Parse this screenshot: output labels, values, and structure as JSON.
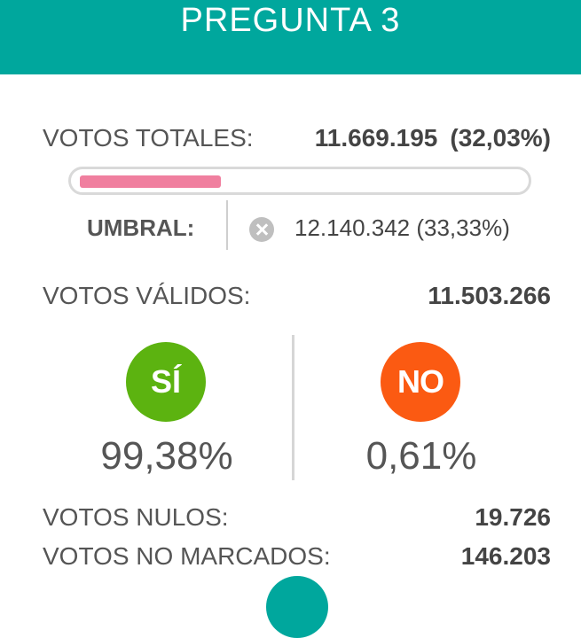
{
  "header": {
    "title": "PREGUNTA 3"
  },
  "totales": {
    "label": "VOTOS TOTALES:",
    "value": "11.669.195",
    "percent": "(32,03%)",
    "progress_fraction": 0.3203
  },
  "umbral": {
    "label": "UMBRAL:",
    "value": "12.140.342 (33,33%)",
    "status_icon": "close-circle-icon"
  },
  "validos": {
    "label": "VOTOS VÁLIDOS:",
    "value": "11.503.266"
  },
  "si": {
    "label": "SÍ",
    "percent": "99,38%",
    "color": "#5cb310"
  },
  "no": {
    "label": "NO",
    "percent": "0,61%",
    "color": "#fb5a12"
  },
  "nulos": {
    "label": "VOTOS NULOS:",
    "value": "19.726"
  },
  "no_marcados": {
    "label": "VOTOS NO MARCADOS:",
    "value": "146.203"
  },
  "colors": {
    "header": "#00a79d",
    "progress": "#f07f9f"
  }
}
